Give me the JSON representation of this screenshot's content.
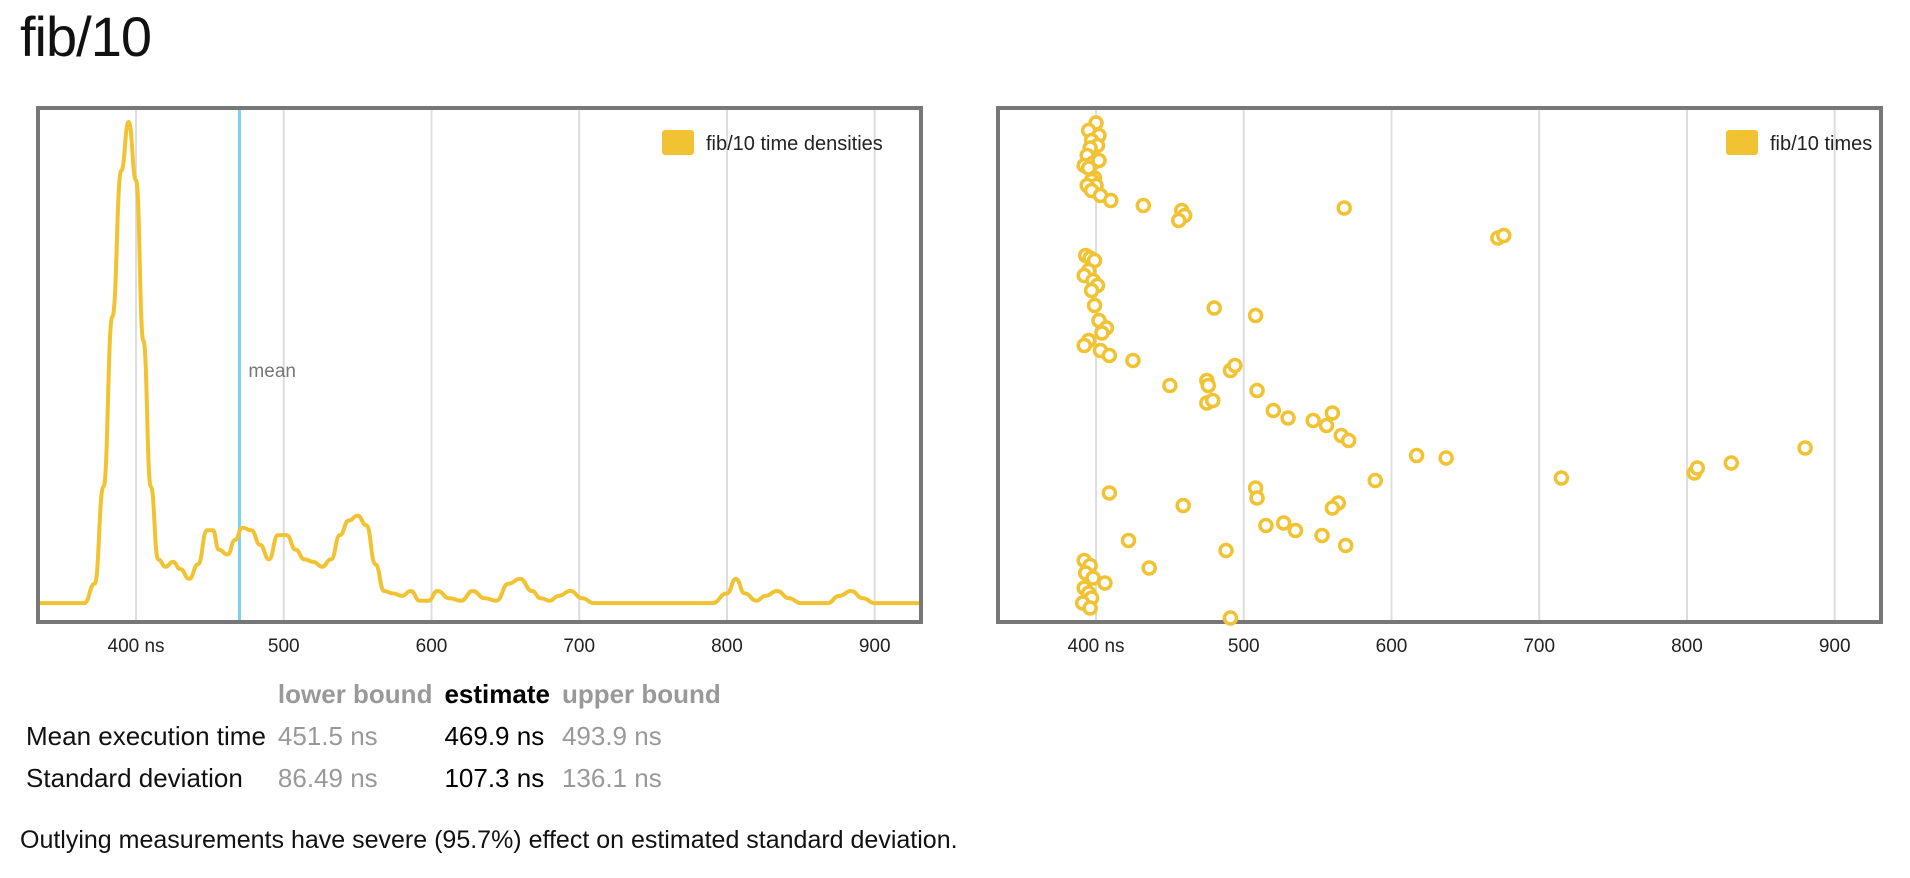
{
  "title": "fib/10",
  "chart_data": [
    {
      "type": "line",
      "name": "density",
      "legend": "fib/10 time densities",
      "xlim": [
        335,
        930
      ],
      "xticks": [
        400,
        500,
        600,
        700,
        800,
        900
      ],
      "xtick_labels": [
        "400 ns",
        "500",
        "600",
        "700",
        "800",
        "900"
      ],
      "mean_line": {
        "x": 470,
        "label": "mean",
        "color": "#7dd0f2"
      },
      "series_color": "#f1c232",
      "x": [
        335,
        365,
        372,
        378,
        384,
        390,
        395,
        400,
        405,
        410,
        415,
        420,
        425,
        430,
        436,
        442,
        448,
        452,
        456,
        462,
        467,
        472,
        478,
        484,
        490,
        496,
        502,
        508,
        514,
        520,
        526,
        532,
        538,
        544,
        550,
        556,
        562,
        568,
        574,
        580,
        586,
        592,
        598,
        604,
        612,
        620,
        628,
        636,
        644,
        652,
        660,
        668,
        674,
        680,
        686,
        694,
        702,
        710,
        716,
        722,
        730,
        760,
        790,
        800,
        806,
        812,
        820,
        826,
        834,
        842,
        850,
        860,
        868,
        876,
        884,
        892,
        900,
        930
      ],
      "y": [
        0.01,
        0.01,
        0.05,
        0.25,
        0.6,
        0.9,
        1.0,
        0.88,
        0.55,
        0.25,
        0.1,
        0.085,
        0.095,
        0.08,
        0.06,
        0.09,
        0.16,
        0.16,
        0.12,
        0.11,
        0.14,
        0.165,
        0.16,
        0.13,
        0.1,
        0.15,
        0.15,
        0.12,
        0.1,
        0.095,
        0.085,
        0.1,
        0.15,
        0.18,
        0.19,
        0.17,
        0.09,
        0.035,
        0.03,
        0.025,
        0.035,
        0.015,
        0.015,
        0.035,
        0.02,
        0.015,
        0.035,
        0.02,
        0.015,
        0.05,
        0.06,
        0.035,
        0.02,
        0.015,
        0.025,
        0.035,
        0.02,
        0.01,
        0.01,
        0.01,
        0.01,
        0.01,
        0.01,
        0.03,
        0.06,
        0.03,
        0.015,
        0.025,
        0.035,
        0.02,
        0.01,
        0.01,
        0.01,
        0.025,
        0.035,
        0.02,
        0.01,
        0.01
      ]
    },
    {
      "type": "scatter",
      "name": "times",
      "legend": "fib/10 times",
      "xlim": [
        335,
        930
      ],
      "xticks": [
        400,
        500,
        600,
        700,
        800,
        900
      ],
      "xtick_labels": [
        "400 ns",
        "500",
        "600",
        "700",
        "800",
        "900"
      ],
      "series_color": "#f1c232",
      "x": [
        400,
        395,
        402,
        397,
        401,
        396,
        394,
        398,
        402,
        392,
        395,
        399,
        397,
        400,
        394,
        397,
        403,
        410,
        432,
        458,
        460,
        456,
        568,
        672,
        676,
        393,
        396,
        399,
        395,
        392,
        398,
        401,
        397,
        399,
        480,
        508,
        402,
        407,
        404,
        395,
        392,
        403,
        409,
        425,
        450,
        475,
        476,
        491,
        494,
        509,
        475,
        479,
        520,
        530,
        547,
        556,
        560,
        566,
        571,
        617,
        637,
        715,
        805,
        807,
        830,
        880,
        409,
        508,
        589,
        459,
        509,
        564,
        515,
        535,
        560,
        527,
        553,
        422,
        569,
        488,
        392,
        396,
        436,
        393,
        398,
        406,
        392,
        395,
        397,
        391,
        396,
        491
      ],
      "y": [
        99,
        97.5,
        96.5,
        95.5,
        94.5,
        94,
        92.5,
        91,
        91.5,
        90.5,
        90,
        88,
        87.5,
        86.5,
        86.5,
        85.5,
        84.5,
        83.5,
        82.5,
        81.5,
        80.5,
        79.5,
        82,
        76,
        76.5,
        72.5,
        72,
        71.5,
        69.5,
        68.5,
        67.5,
        66.5,
        65.5,
        62.5,
        62,
        60.5,
        59.5,
        58,
        57,
        55.5,
        54.5,
        53.5,
        52.5,
        51.5,
        46.5,
        47.5,
        46.5,
        49.5,
        50.5,
        45.5,
        43,
        43.5,
        41.5,
        40,
        39.5,
        38.5,
        41,
        36.5,
        35.5,
        32.5,
        32,
        28,
        29,
        30,
        31,
        34,
        25,
        26,
        27.5,
        22.5,
        24,
        23,
        18.5,
        17.5,
        22,
        19,
        16.5,
        15.5,
        14.5,
        13.5,
        11.5,
        10.5,
        10,
        9,
        8,
        7,
        6,
        5,
        4,
        3,
        2,
        0
      ]
    }
  ],
  "stats": {
    "headers": {
      "lower": "lower bound",
      "estimate": "estimate",
      "upper": "upper bound"
    },
    "rows": [
      {
        "label": "Mean execution time",
        "lower": "451.5 ns",
        "estimate": "469.9 ns",
        "upper": "493.9 ns"
      },
      {
        "label": "Standard deviation",
        "lower": "86.49 ns",
        "estimate": "107.3 ns",
        "upper": "136.1 ns"
      }
    ]
  },
  "outliers_text": "Outlying measurements have severe (95.7%) effect on estimated standard deviation."
}
